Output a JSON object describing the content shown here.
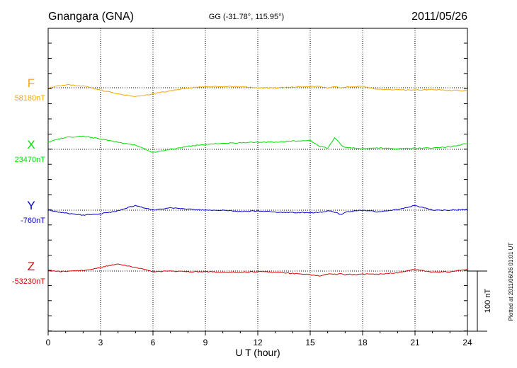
{
  "header": {
    "station": "Gnangara (GNA)",
    "coords": "GG (-31.78°, 115.95°)",
    "date": "2011/05/26"
  },
  "footer_note": "Plotted at 2011/06/26 01:01 UT",
  "chart_data": {
    "type": "line",
    "title": "",
    "xlabel": "U T (hour)",
    "ylabel": "",
    "xlim": [
      0,
      24
    ],
    "x_ticks": [
      0,
      3,
      6,
      9,
      12,
      15,
      18,
      21,
      24
    ],
    "x_tick_labels": [
      "0",
      "3",
      "6",
      "9",
      "12",
      "15",
      "18",
      "21",
      "24"
    ],
    "grid": true,
    "scale_bar": {
      "label": "100 nT",
      "value_nT": 100
    },
    "x": [
      0,
      1,
      2,
      3,
      4,
      5,
      6,
      7,
      8,
      9,
      10,
      11,
      12,
      13,
      14,
      15,
      15.5,
      16,
      16.4,
      16.8,
      17,
      18,
      19,
      20,
      21,
      22,
      23,
      24
    ],
    "series": [
      {
        "name": "F",
        "baseline_label": "58180nT",
        "baseline_nT": 58180,
        "color": "#f5a800",
        "values": [
          58180,
          58185,
          58183,
          58176,
          58170,
          58165,
          58170,
          58175,
          58180,
          58182,
          58182,
          58182,
          58180,
          58180,
          58181,
          58182,
          58182,
          58180,
          58182,
          58180,
          58181,
          58182,
          58177,
          58177,
          58176,
          58177,
          58176,
          58175
        ]
      },
      {
        "name": "X",
        "baseline_label": "23470nT",
        "baseline_nT": 23470,
        "color": "#00e000",
        "values": [
          23482,
          23490,
          23492,
          23487,
          23482,
          23477,
          23465,
          23470,
          23475,
          23478,
          23480,
          23481,
          23482,
          23482,
          23484,
          23485,
          23475,
          23472,
          23489,
          23477,
          23473,
          23471,
          23472,
          23471,
          23472,
          23472,
          23474,
          23480
        ]
      },
      {
        "name": "Y",
        "baseline_label": "-760nT",
        "baseline_nT": -760,
        "color": "#0000cc",
        "values": [
          -760,
          -765,
          -768,
          -766,
          -761,
          -752,
          -760,
          -756,
          -758,
          -760,
          -760,
          -762,
          -761,
          -763,
          -764,
          -764,
          -764,
          -761,
          -763,
          -768,
          -763,
          -760,
          -763,
          -759,
          -752,
          -760,
          -760,
          -759
        ]
      },
      {
        "name": "Z",
        "baseline_label": "-53230nT",
        "baseline_nT": -53230,
        "color": "#e00000",
        "values": [
          -53230,
          -53231,
          -53229,
          -53224,
          -53218,
          -53224,
          -53231,
          -53230,
          -53231,
          -53231,
          -53232,
          -53232,
          -53231,
          -53232,
          -53234,
          -53236,
          -53238,
          -53235,
          -53235,
          -53235,
          -53236,
          -53235,
          -53235,
          -53233,
          -53227,
          -53232,
          -53231,
          -53227
        ]
      }
    ]
  }
}
